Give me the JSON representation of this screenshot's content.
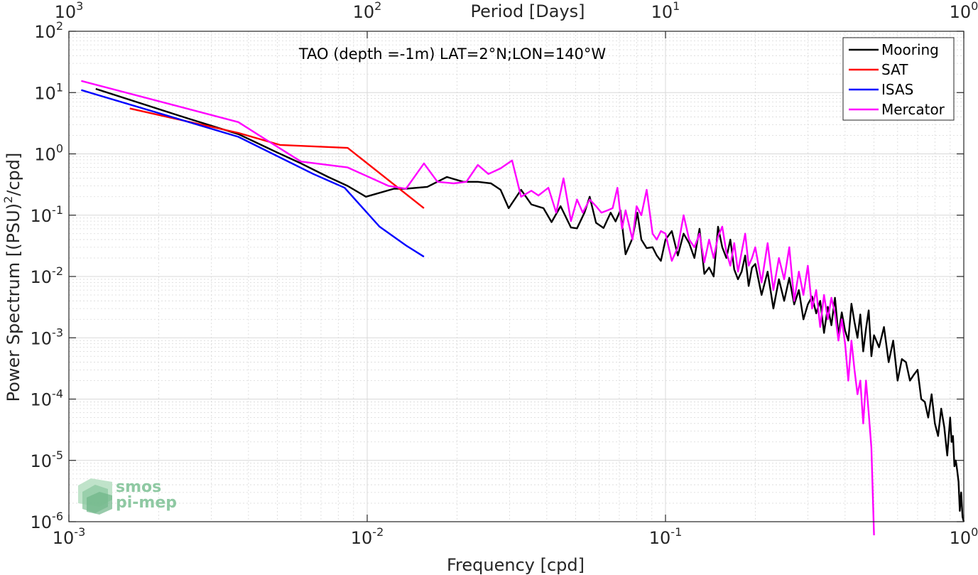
{
  "chart_data": {
    "type": "line",
    "title": "TAO (depth =-1m) LAT=2°N;LON=140°W",
    "xlabel": "Frequency [cpd]",
    "ylabel": "Power Spectrum [(PSU)²/cpd]",
    "ylabel_base": "Power Spectrum [(PSU)",
    "ylabel_sup": "2",
    "ylabel_tail": "/cpd]",
    "top_xlabel": "Period [Days]",
    "x_scale": "log",
    "y_scale": "log",
    "xlim": [
      0.001,
      1
    ],
    "ylim": [
      1e-06,
      100
    ],
    "grid": true,
    "legend_position": "top-right",
    "x_ticks": [
      {
        "base": "10",
        "exp": "-3"
      },
      {
        "base": "10",
        "exp": "-2"
      },
      {
        "base": "10",
        "exp": "-1"
      },
      {
        "base": "10",
        "exp": "0"
      }
    ],
    "top_ticks": [
      {
        "base": "10",
        "exp": "3"
      },
      {
        "base": "10",
        "exp": "2"
      },
      {
        "base": "10",
        "exp": "1"
      },
      {
        "base": "10",
        "exp": "0"
      }
    ],
    "y_ticks": [
      {
        "base": "10",
        "exp": "2"
      },
      {
        "base": "10",
        "exp": "1"
      },
      {
        "base": "10",
        "exp": "0"
      },
      {
        "base": "10",
        "exp": "-1"
      },
      {
        "base": "10",
        "exp": "-2"
      },
      {
        "base": "10",
        "exp": "-3"
      },
      {
        "base": "10",
        "exp": "-4"
      },
      {
        "base": "10",
        "exp": "-5"
      },
      {
        "base": "10",
        "exp": "-6"
      }
    ],
    "series": [
      {
        "name": "Mooring",
        "color": "#000000",
        "x": [
          0.00123,
          0.0025,
          0.0037,
          0.005,
          0.006,
          0.0074,
          0.0086,
          0.0099,
          0.0123,
          0.0135,
          0.0159,
          0.0185,
          0.021,
          0.0235,
          0.026,
          0.028,
          0.0298,
          0.0328,
          0.0355,
          0.039,
          0.0415,
          0.0445,
          0.0482,
          0.0505,
          0.0535,
          0.0557,
          0.0585,
          0.062,
          0.0655,
          0.068,
          0.0706,
          0.0735,
          0.0775,
          0.0805,
          0.083,
          0.0865,
          0.0905,
          0.0935,
          0.0965,
          0.1,
          0.105,
          0.11,
          0.115,
          0.12,
          0.125,
          0.13,
          0.135,
          0.14,
          0.145,
          0.15,
          0.155,
          0.16,
          0.165,
          0.17,
          0.175,
          0.18,
          0.185,
          0.19,
          0.195,
          0.2,
          0.21,
          0.22,
          0.23,
          0.24,
          0.25,
          0.26,
          0.27,
          0.28,
          0.29,
          0.3,
          0.31,
          0.32,
          0.33,
          0.34,
          0.35,
          0.36,
          0.37,
          0.38,
          0.39,
          0.4,
          0.41,
          0.42,
          0.43,
          0.44,
          0.45,
          0.46,
          0.47,
          0.48,
          0.49,
          0.5,
          0.52,
          0.54,
          0.56,
          0.58,
          0.6,
          0.62,
          0.64,
          0.66,
          0.68,
          0.7,
          0.72,
          0.74,
          0.76,
          0.78,
          0.8,
          0.82,
          0.84,
          0.86,
          0.88,
          0.9,
          0.91,
          0.92,
          0.93,
          0.94,
          0.95,
          0.96,
          0.97,
          0.98,
          0.99,
          1.0
        ],
        "y": [
          11.5,
          3.8,
          2.1,
          1.05,
          0.7,
          0.42,
          0.3,
          0.2,
          0.27,
          0.27,
          0.29,
          0.42,
          0.35,
          0.35,
          0.33,
          0.26,
          0.13,
          0.26,
          0.15,
          0.13,
          0.077,
          0.14,
          0.063,
          0.061,
          0.11,
          0.2,
          0.075,
          0.062,
          0.11,
          0.079,
          0.12,
          0.023,
          0.042,
          0.11,
          0.04,
          0.029,
          0.03,
          0.022,
          0.018,
          0.04,
          0.055,
          0.022,
          0.05,
          0.035,
          0.02,
          0.06,
          0.011,
          0.014,
          0.01,
          0.065,
          0.03,
          0.02,
          0.04,
          0.013,
          0.009,
          0.012,
          0.022,
          0.007,
          0.014,
          0.016,
          0.005,
          0.012,
          0.003,
          0.009,
          0.004,
          0.0095,
          0.0035,
          0.006,
          0.002,
          0.0035,
          0.0047,
          0.0025,
          0.004,
          0.0012,
          0.0032,
          0.0016,
          0.0045,
          0.0011,
          0.0026,
          0.0013,
          0.0009,
          0.0036,
          0.0018,
          0.001,
          0.0024,
          0.0006,
          0.0014,
          0.0028,
          0.0005,
          0.0011,
          0.0007,
          0.0015,
          0.0004,
          0.0009,
          0.0002,
          0.00045,
          0.0004,
          0.0002,
          0.00025,
          0.0003,
          0.0001,
          9e-05,
          5e-05,
          0.00012,
          4e-05,
          2.5e-05,
          7e-05,
          3.5e-05,
          1.2e-05,
          5e-05,
          2e-05,
          2.5e-05,
          8e-06,
          1e-05,
          7e-06,
          4.5e-06,
          1.5e-06,
          3e-06,
          1.2e-06,
          1e-06
        ]
      },
      {
        "name": "SAT",
        "color": "#ff0000",
        "x": [
          0.0016,
          0.0037,
          0.0051,
          0.0086,
          0.0155
        ],
        "y": [
          5.5,
          2.2,
          1.4,
          1.25,
          0.13
        ]
      },
      {
        "name": "ISAS",
        "color": "#0000ff",
        "x": [
          0.0011,
          0.0037,
          0.0066,
          0.0084,
          0.011,
          0.0135,
          0.0155
        ],
        "y": [
          11.0,
          1.9,
          0.47,
          0.28,
          0.065,
          0.032,
          0.021
        ]
      },
      {
        "name": "Mercator",
        "color": "#ff00ff",
        "x": [
          0.0011,
          0.0037,
          0.0045,
          0.006,
          0.0086,
          0.0118,
          0.0135,
          0.0155,
          0.0172,
          0.0195,
          0.0215,
          0.0235,
          0.0255,
          0.028,
          0.0306,
          0.0328,
          0.0355,
          0.0375,
          0.0405,
          0.043,
          0.0455,
          0.0482,
          0.0505,
          0.0528,
          0.0557,
          0.0585,
          0.061,
          0.064,
          0.0665,
          0.069,
          0.0715,
          0.0735,
          0.0775,
          0.08,
          0.083,
          0.0865,
          0.0905,
          0.0935,
          0.0965,
          0.1,
          0.105,
          0.11,
          0.115,
          0.12,
          0.125,
          0.13,
          0.135,
          0.14,
          0.145,
          0.15,
          0.155,
          0.16,
          0.165,
          0.17,
          0.175,
          0.18,
          0.185,
          0.19,
          0.195,
          0.2,
          0.21,
          0.22,
          0.23,
          0.24,
          0.25,
          0.26,
          0.27,
          0.28,
          0.29,
          0.3,
          0.31,
          0.32,
          0.33,
          0.34,
          0.35,
          0.36,
          0.37,
          0.38,
          0.39,
          0.4,
          0.41,
          0.42,
          0.43,
          0.44,
          0.45,
          0.46,
          0.47,
          0.48,
          0.49,
          0.5
        ],
        "y": [
          15.5,
          3.3,
          1.8,
          0.75,
          0.6,
          0.3,
          0.27,
          0.7,
          0.35,
          0.33,
          0.35,
          0.66,
          0.47,
          0.58,
          0.78,
          0.2,
          0.25,
          0.21,
          0.28,
          0.11,
          0.4,
          0.08,
          0.18,
          0.11,
          0.18,
          0.14,
          0.11,
          0.12,
          0.13,
          0.28,
          0.06,
          0.12,
          0.04,
          0.14,
          0.1,
          0.26,
          0.05,
          0.04,
          0.055,
          0.05,
          0.018,
          0.03,
          0.1,
          0.04,
          0.03,
          0.05,
          0.017,
          0.04,
          0.02,
          0.045,
          0.065,
          0.025,
          0.015,
          0.035,
          0.012,
          0.025,
          0.05,
          0.015,
          0.02,
          0.03,
          0.008,
          0.035,
          0.006,
          0.02,
          0.009,
          0.03,
          0.004,
          0.012,
          0.005,
          0.015,
          0.003,
          0.006,
          0.0015,
          0.005,
          0.002,
          0.0045,
          0.0025,
          0.0009,
          0.002,
          0.0008,
          0.0002,
          0.0009,
          0.0003,
          0.00012,
          0.0002,
          4e-05,
          0.0002,
          6e-05,
          1.6e-05,
          6e-07
        ]
      }
    ]
  },
  "logo": {
    "line1": "smos",
    "line2": "pi-mep"
  },
  "colors": {
    "axis": "#262626",
    "grid": "#d9d9d9",
    "logo": "#8fc9a3"
  }
}
